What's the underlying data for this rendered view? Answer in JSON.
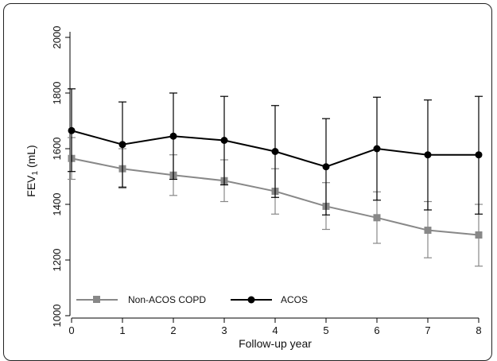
{
  "chart_data": {
    "type": "line",
    "xlabel": "Follow-up year",
    "ylabel": "FEV",
    "ylabel_sub": "1",
    "ylabel_unit": " (mL)",
    "x": [
      0,
      1,
      2,
      3,
      4,
      5,
      6,
      7,
      8
    ],
    "x_ticks": [
      "0",
      "1",
      "2",
      "3",
      "4",
      "5",
      "6",
      "7",
      "8"
    ],
    "ylim": [
      1000,
      2000
    ],
    "y_ticks": [
      "1000",
      "1200",
      "1400",
      "1600",
      "1800",
      "2000"
    ],
    "grid": false,
    "legend_position": "bottom-left",
    "series": [
      {
        "name": "Non-ACOS COPD",
        "color": "#888888",
        "marker": "square",
        "values": [
          1565,
          1528,
          1505,
          1485,
          1447,
          1393,
          1352,
          1307,
          1290
        ],
        "err_upper": [
          1640,
          1600,
          1578,
          1560,
          1528,
          1478,
          1445,
          1410,
          1400
        ],
        "err_lower": [
          1490,
          1458,
          1432,
          1410,
          1365,
          1310,
          1260,
          1208,
          1178
        ]
      },
      {
        "name": "ACOS",
        "color": "#000000",
        "marker": "circle",
        "values": [
          1665,
          1615,
          1645,
          1630,
          1590,
          1535,
          1600,
          1578,
          1578
        ],
        "err_upper": [
          1815,
          1768,
          1800,
          1788,
          1755,
          1708,
          1785,
          1775,
          1788
        ],
        "err_lower": [
          1518,
          1462,
          1490,
          1470,
          1425,
          1362,
          1415,
          1380,
          1365
        ]
      }
    ]
  }
}
